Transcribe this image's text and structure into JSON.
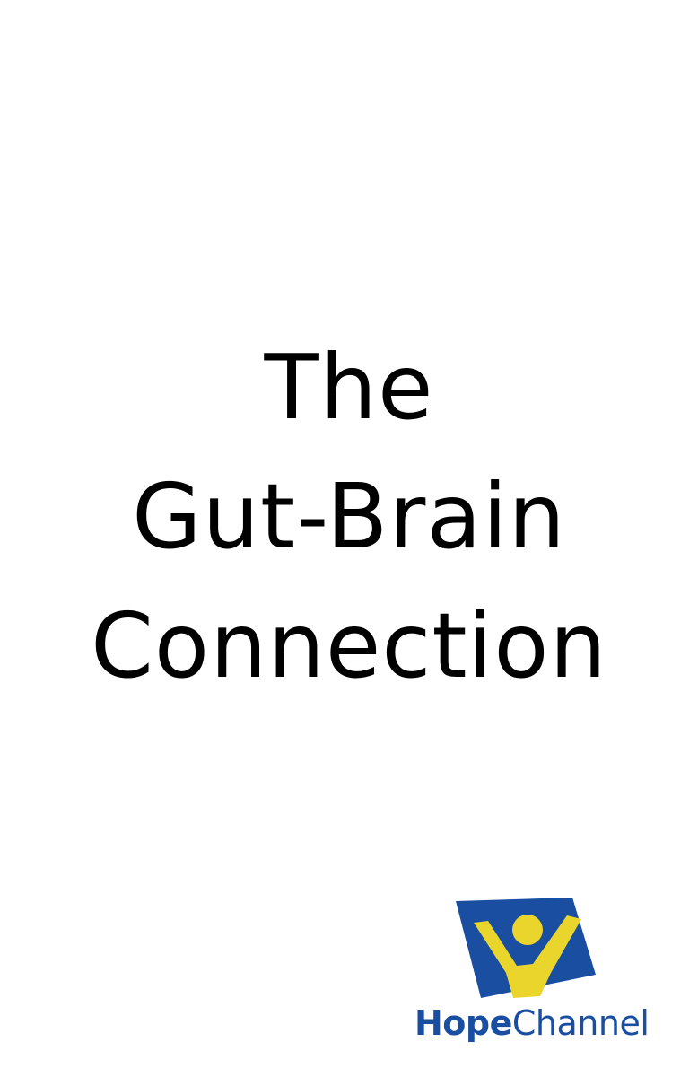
{
  "title": {
    "lines": [
      "The",
      "Gut-Brain",
      "Connection"
    ]
  },
  "logo": {
    "word_part1": "Hope",
    "word_part2": "Channel",
    "colors": {
      "blue": "#1a4ea0",
      "yellow": "#e9d52c"
    }
  }
}
